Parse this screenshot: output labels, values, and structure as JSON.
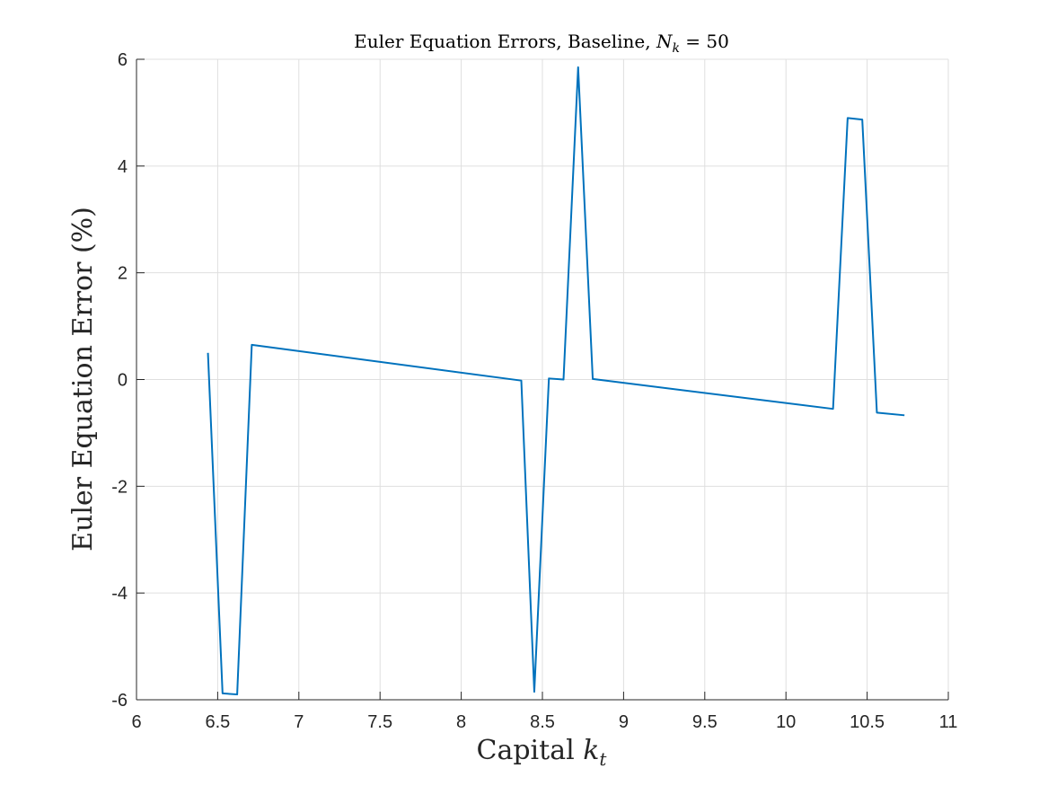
{
  "chart_data": {
    "type": "line",
    "title": {
      "prefix": "Euler Equation Errors, Baseline, ",
      "var": "N",
      "sub": "k",
      "suffix": " = 50"
    },
    "xlabel": {
      "prefix": "Capital ",
      "var": "k",
      "sub": "t"
    },
    "ylabel": "Euler Equation Error (%)",
    "xlim": [
      6,
      11
    ],
    "ylim": [
      -6,
      6
    ],
    "xticks": [
      "6",
      "6.5",
      "7",
      "7.5",
      "8",
      "8.5",
      "9",
      "9.5",
      "10",
      "10.5",
      "11"
    ],
    "yticks": [
      "-6",
      "-4",
      "-2",
      "0",
      "2",
      "4",
      "6"
    ],
    "grid": true,
    "legend": "none",
    "series": [
      {
        "color": "#0072BD",
        "x": [
          6.44,
          6.53,
          6.62,
          6.71,
          8.37,
          8.45,
          8.54,
          8.63,
          8.72,
          8.81,
          10.29,
          10.38,
          10.47,
          10.56,
          10.73
        ],
        "y": [
          0.5,
          -5.88,
          -5.9,
          0.65,
          -0.02,
          -5.85,
          0.02,
          0.0,
          5.85,
          0.01,
          -0.55,
          4.9,
          4.87,
          -0.62,
          -0.67
        ]
      }
    ]
  }
}
